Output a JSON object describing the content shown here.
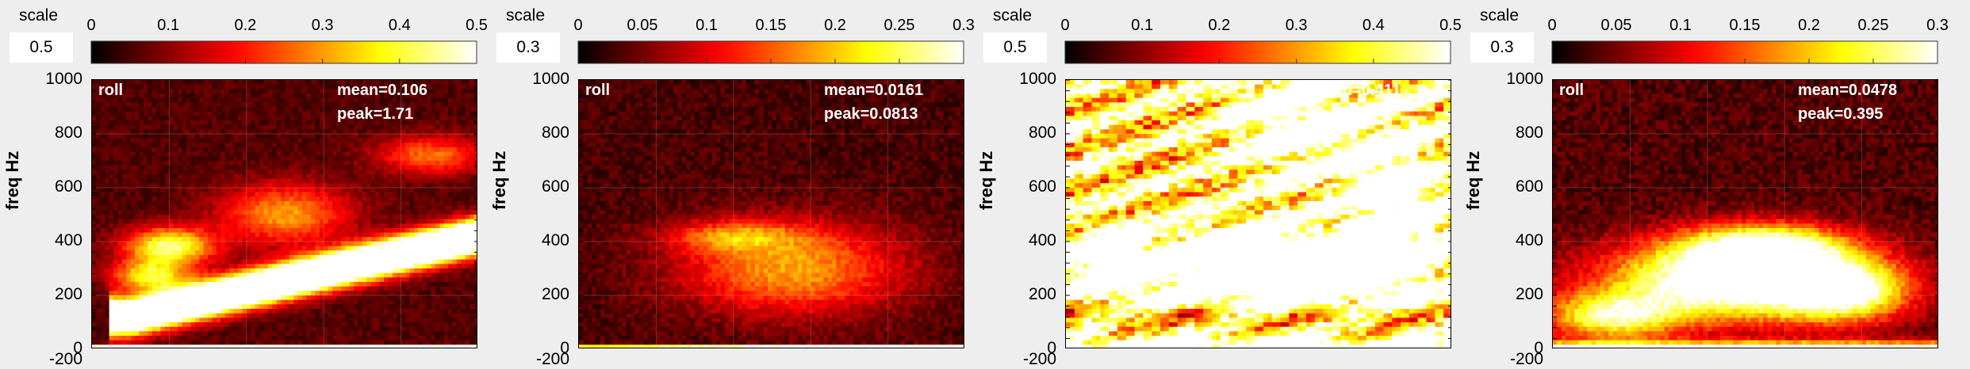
{
  "colorbar_label": "scale",
  "ylabel": "freq Hz",
  "y_ticks": [
    "1000",
    "800",
    "600",
    "400",
    "200",
    "0"
  ],
  "bottom_partial_tick": "-200",
  "colormap": "hot",
  "panels": [
    {
      "scale_value": "0.5",
      "cbar_ticks": [
        "0",
        "0.1",
        "0.2",
        "0.3",
        "0.4",
        "0.5"
      ],
      "label": "roll",
      "mean": "mean=0.106",
      "peak": "peak=1.71"
    },
    {
      "scale_value": "0.3",
      "cbar_ticks": [
        "0",
        "0.05",
        "0.1",
        "0.15",
        "0.2",
        "0.25",
        "0.3"
      ],
      "label": "roll",
      "mean": "mean=0.0161",
      "peak": "peak=0.0813"
    },
    {
      "scale_value": "0.5",
      "cbar_ticks": [
        "0",
        "0.1",
        "0.2",
        "0.3",
        "0.4",
        "0.5"
      ],
      "label": "roll",
      "mean": "mean=0.411",
      "peak": "peak=1.84"
    },
    {
      "scale_value": "0.3",
      "cbar_ticks": [
        "0",
        "0.05",
        "0.1",
        "0.15",
        "0.2",
        "0.25",
        "0.3"
      ],
      "label": "roll",
      "mean": "mean=0.0478",
      "peak": "peak=0.395"
    }
  ],
  "chart_data": [
    {
      "type": "heatmap",
      "title": "",
      "xlabel": "",
      "ylabel": "freq Hz",
      "ylim": [
        0,
        1000
      ],
      "colorbar_range": [
        0,
        0.5
      ],
      "grid": true,
      "annotations": [
        "roll",
        "mean=0.106",
        "peak=1.71"
      ]
    },
    {
      "type": "heatmap",
      "title": "",
      "xlabel": "",
      "ylabel": "freq Hz",
      "ylim": [
        0,
        1000
      ],
      "colorbar_range": [
        0,
        0.3
      ],
      "grid": true,
      "annotations": [
        "roll",
        "mean=0.0161",
        "peak=0.0813"
      ]
    },
    {
      "type": "heatmap",
      "title": "",
      "xlabel": "",
      "ylabel": "freq Hz",
      "ylim": [
        0,
        1000
      ],
      "colorbar_range": [
        0,
        0.5
      ],
      "grid": true,
      "annotations": [
        "roll",
        "mean=0.411",
        "peak=1.84"
      ]
    },
    {
      "type": "heatmap",
      "title": "",
      "xlabel": "",
      "ylabel": "freq Hz",
      "ylim": [
        0,
        1000
      ],
      "colorbar_range": [
        0,
        0.3
      ],
      "grid": true,
      "annotations": [
        "roll",
        "mean=0.0478",
        "peak=0.395"
      ]
    }
  ]
}
